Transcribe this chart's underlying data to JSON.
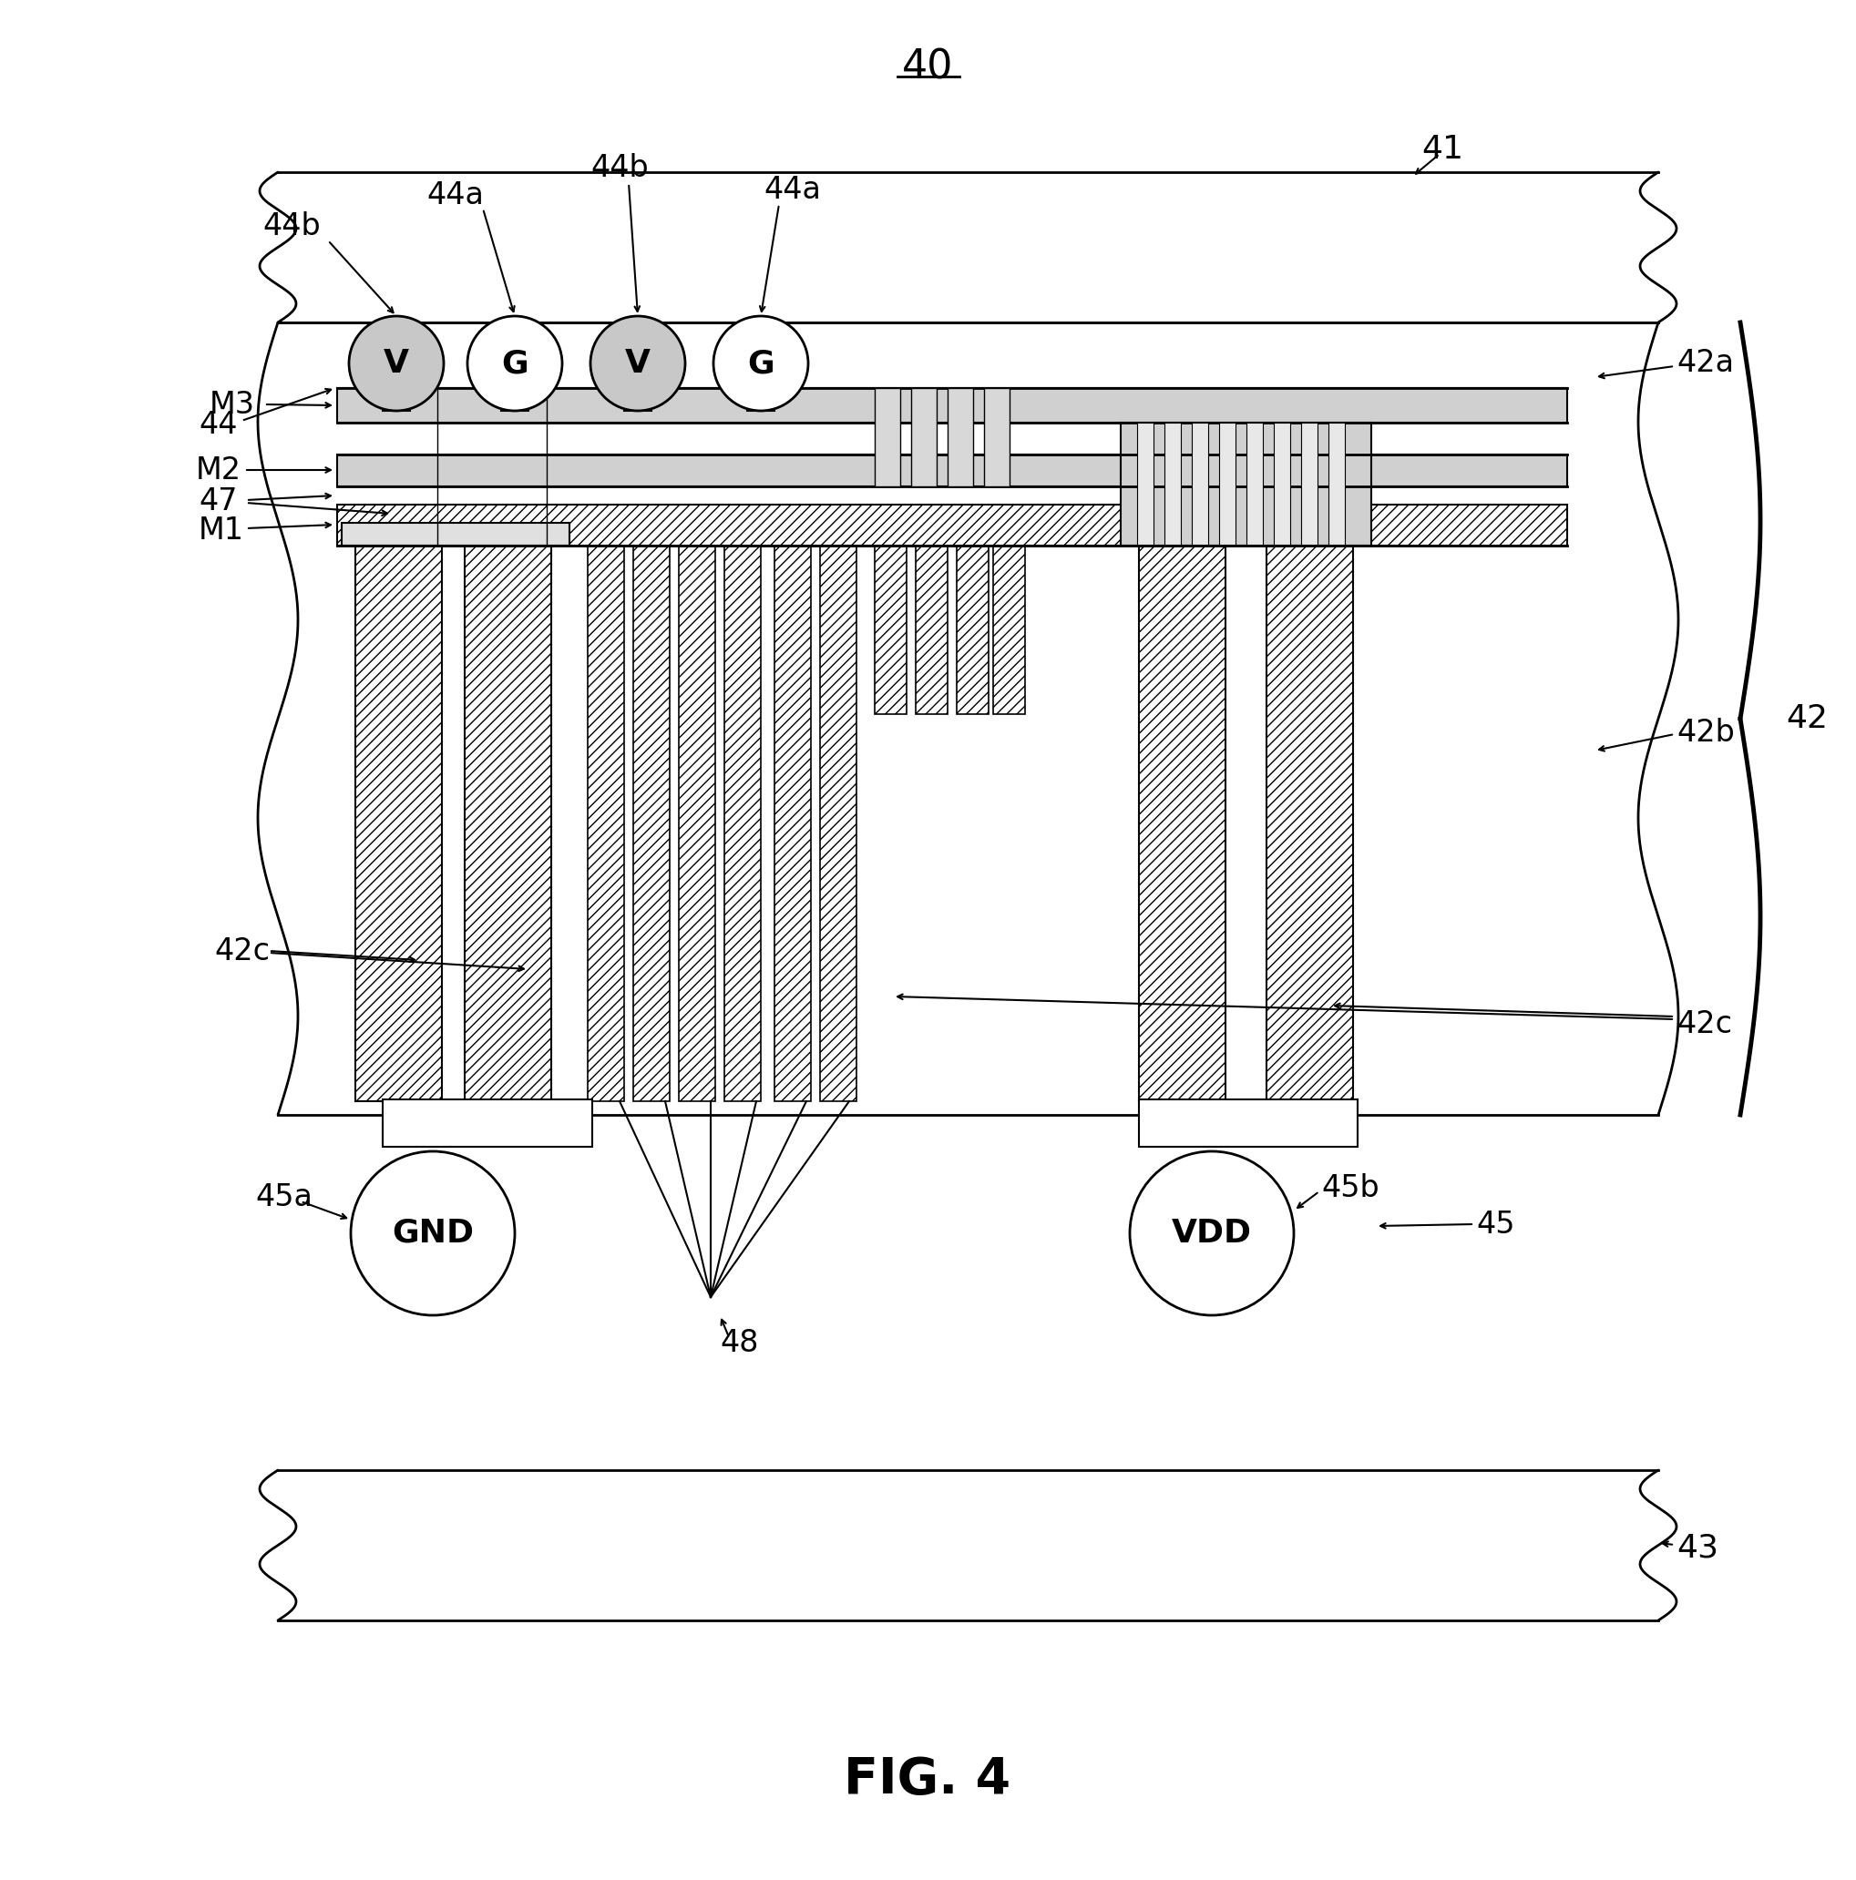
{
  "bg": "#ffffff",
  "lc": "#000000",
  "fig_num": "40",
  "caption": "FIG. 4",
  "labels": {
    "41": "41",
    "42": "42",
    "42a": "42a",
    "42b": "42b",
    "42c_l": "42c",
    "42c_r": "42c",
    "43": "43",
    "44": "44",
    "44a_l": "44a",
    "44a_r": "44a",
    "44b_l": "44b",
    "44b_r": "44b",
    "45": "45",
    "45a": "45a",
    "45b": "45b",
    "47": "47",
    "48": "48",
    "M1": "M1",
    "M2": "M2",
    "M3": "M3",
    "GND": "GND",
    "VDD": "VDD",
    "V1": "V",
    "G1": "G",
    "V2": "V",
    "G2": "G"
  }
}
